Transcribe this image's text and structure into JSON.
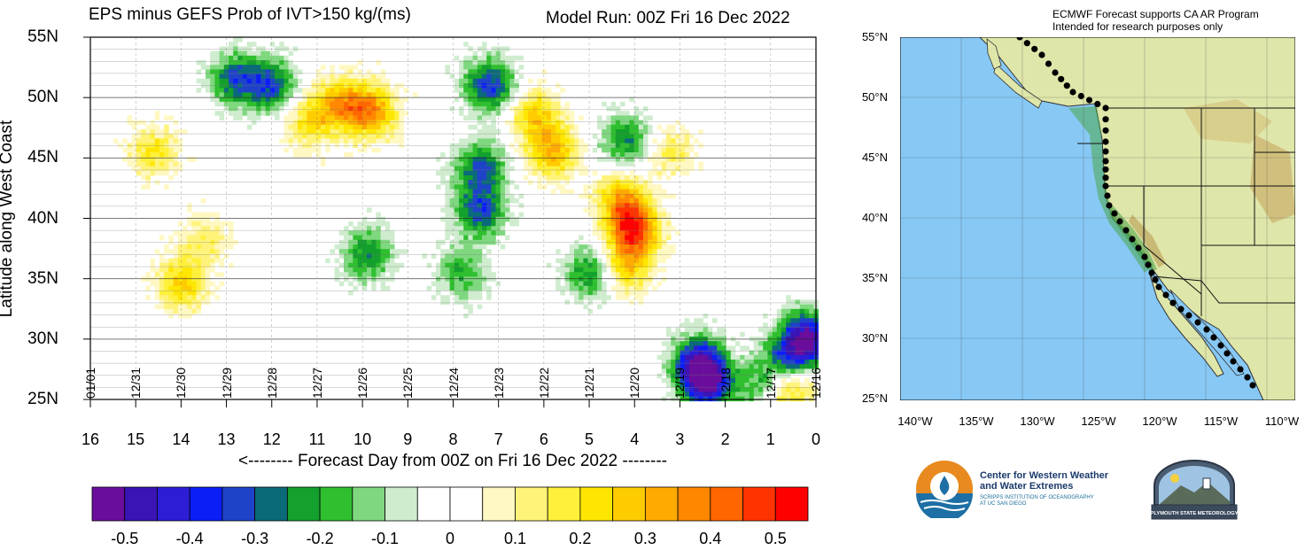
{
  "title": "EPS minus GEFS Prob of IVT>150 kg/(ms)",
  "run": "Model Run: 00Z Fri 16 Dec 2022",
  "credit": [
    "ECMWF Forecast supports CA AR Program",
    "Intended for research purposes only"
  ],
  "chart_data": {
    "type": "heatmap",
    "title": "EPS minus GEFS Prob of IVT>150 kg/(ms)",
    "xlabel": "<-------- Forecast Day from 00Z on Fri 16 Dec 2022 --------",
    "ylabel": "Latitude along West Coast",
    "x_reversed": true,
    "xlim": [
      0,
      16
    ],
    "ylim": [
      25,
      55
    ],
    "x_ticks": [
      "16",
      "15",
      "14",
      "13",
      "12",
      "11",
      "10",
      "9",
      "8",
      "7",
      "6",
      "5",
      "4",
      "3",
      "2",
      "1",
      "0"
    ],
    "y_ticks": [
      "25N",
      "30N",
      "35N",
      "40N",
      "45N",
      "50N",
      "55N"
    ],
    "date_ticks": [
      "01/01",
      "12/31",
      "12/30",
      "12/29",
      "12/28",
      "12/27",
      "12/26",
      "12/25",
      "12/24",
      "12/23",
      "12/22",
      "12/21",
      "12/20",
      "12/19",
      "12/18",
      "12/17",
      "12/16"
    ],
    "colorbar_labels": [
      "-0.5",
      "-0.4",
      "-0.3",
      "-0.2",
      "-0.1",
      "0",
      "0.1",
      "0.2",
      "0.3",
      "0.4",
      "0.5"
    ],
    "colorbar_colors": [
      "#6a0d9c",
      "#3a14b4",
      "#2d1ed6",
      "#0b1ef7",
      "#1f43c8",
      "#0b6a7a",
      "#13a02c",
      "#2fbf2f",
      "#7fd87f",
      "#cfeccf",
      "#ffffff",
      "#ffffff",
      "#fff8c2",
      "#fff37a",
      "#fff03a",
      "#ffe600",
      "#ffcc00",
      "#ffaa00",
      "#ff8800",
      "#ff6600",
      "#ff3300",
      "#ff0000"
    ],
    "features": [
      {
        "x": 10.5,
        "y": 49.5,
        "value": 0.3
      },
      {
        "x": 9.8,
        "y": 48.8,
        "value": 0.35
      },
      {
        "x": 11.2,
        "y": 48.0,
        "value": 0.2
      },
      {
        "x": 6.2,
        "y": 48.5,
        "value": 0.25
      },
      {
        "x": 5.8,
        "y": 45.5,
        "value": 0.3
      },
      {
        "x": 4.0,
        "y": 39.0,
        "value": 0.45
      },
      {
        "x": 4.3,
        "y": 41.5,
        "value": 0.3
      },
      {
        "x": 4.2,
        "y": 36.0,
        "value": 0.25
      },
      {
        "x": 3.2,
        "y": 45.5,
        "value": 0.15
      },
      {
        "x": 13.5,
        "y": 38.0,
        "value": 0.15
      },
      {
        "x": 14.0,
        "y": 34.5,
        "value": 0.25
      },
      {
        "x": 14.6,
        "y": 45.5,
        "value": 0.2
      },
      {
        "x": 7.2,
        "y": 51.0,
        "value": -0.35
      },
      {
        "x": 7.4,
        "y": 44.0,
        "value": -0.3
      },
      {
        "x": 7.4,
        "y": 40.5,
        "value": -0.3
      },
      {
        "x": 12.8,
        "y": 51.5,
        "value": -0.3
      },
      {
        "x": 12.0,
        "y": 51.0,
        "value": -0.3
      },
      {
        "x": 9.9,
        "y": 37.0,
        "value": -0.25
      },
      {
        "x": 7.8,
        "y": 35.5,
        "value": -0.2
      },
      {
        "x": 5.0,
        "y": 35.5,
        "value": -0.25
      },
      {
        "x": 4.2,
        "y": 46.5,
        "value": -0.25
      },
      {
        "x": 2.6,
        "y": 28.0,
        "value": -0.4
      },
      {
        "x": 2.4,
        "y": 26.5,
        "value": -0.45
      },
      {
        "x": 0.2,
        "y": 30.0,
        "value": -0.5
      },
      {
        "x": 0.6,
        "y": 28.0,
        "value": -0.4
      },
      {
        "x": 1.1,
        "y": 25.8,
        "value": -0.4
      },
      {
        "x": 0.9,
        "y": 25.5,
        "value": 0.35
      },
      {
        "x": 0.5,
        "y": 26.8,
        "value": 0.3
      }
    ]
  },
  "map": {
    "lat_labels": [
      "55°N",
      "50°N",
      "45°N",
      "40°N",
      "35°N",
      "30°N",
      "25°N"
    ],
    "lon_labels": [
      "140°W",
      "135°W",
      "130°W",
      "125°W",
      "120°W",
      "115°W",
      "110°W"
    ],
    "ocean_color": "#87c8f5",
    "land_color": "#dfe6a9"
  },
  "logos": {
    "cw3e": [
      "Center for Western Weather",
      "and Water Extremes"
    ],
    "cw3e_sub": [
      "SCRIPPS INSTITUTION OF OCEANOGRAPHY",
      "AT UC SAN DIEGO"
    ],
    "plymouth": "PLYMOUTH STATE METEOROLOGY"
  }
}
